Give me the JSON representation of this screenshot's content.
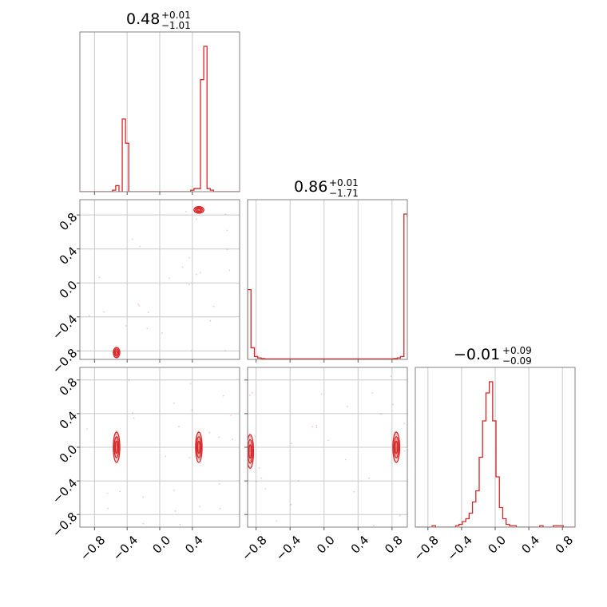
{
  "chart_data": {
    "type": "corner",
    "color": "#d62728",
    "parameters": [
      {
        "title": {
          "median": "0.48",
          "plus": "+0.01",
          "minus": "−1.01"
        },
        "range": [
          -0.98,
          0.98
        ]
      },
      {
        "title": {
          "median": "0.86",
          "plus": "+0.01",
          "minus": "−1.71"
        },
        "range": [
          -0.9,
          0.98
        ]
      },
      {
        "title": {
          "median": "−0.01",
          "plus": "+0.09",
          "minus": "−0.09"
        },
        "range": [
          -0.95,
          0.95
        ]
      }
    ],
    "ticks": {
      "p1": [
        "−0.8",
        "−0.4",
        "0.0",
        "0.4"
      ],
      "p2": [
        "−0.8",
        "−0.4",
        "0.0",
        "0.4",
        "0.8"
      ],
      "p3": [
        "−0.8",
        "−0.4",
        "0.0",
        "0.4",
        "0.8"
      ]
    },
    "grid": true,
    "histograms": [
      {
        "param": 1,
        "bin_width": 0.04,
        "edges_start": -0.98,
        "counts": [
          0,
          0,
          0,
          0,
          0,
          0,
          0,
          0,
          0,
          0,
          0.5,
          2,
          0,
          24,
          16,
          0,
          0,
          0,
          0,
          0,
          0,
          0,
          0,
          0,
          0,
          0,
          0,
          0,
          0,
          0,
          0,
          0,
          0,
          0,
          0.5,
          1,
          1,
          37,
          48,
          1,
          0.5,
          0,
          0,
          0,
          0,
          0,
          0,
          0,
          0
        ]
      },
      {
        "param": 2,
        "bin_width": 0.04,
        "edges_start": -0.9,
        "counts": [
          24,
          4,
          1,
          0.5,
          0.3,
          0.2,
          0.2,
          0.2,
          0.2,
          0.2,
          0.2,
          0.2,
          0.2,
          0.2,
          0.2,
          0.2,
          0.2,
          0.2,
          0.2,
          0.2,
          0.2,
          0.2,
          0.2,
          0.2,
          0.2,
          0.2,
          0.2,
          0.2,
          0.2,
          0.2,
          0.2,
          0.2,
          0.2,
          0.2,
          0.2,
          0.2,
          0.2,
          0.2,
          0.2,
          0.2,
          0.2,
          0.2,
          0.2,
          0.3,
          0.5,
          1,
          50,
          49,
          3
        ]
      },
      {
        "param": 3,
        "bin_width": 0.04,
        "edges_start": -0.95,
        "counts": [
          0,
          0,
          0,
          0,
          0,
          0.5,
          0,
          0,
          0,
          0,
          0,
          0,
          0.5,
          1,
          2,
          3,
          5,
          9,
          13,
          25,
          38,
          48,
          52,
          38,
          18,
          7,
          3,
          1,
          0.5,
          0.5,
          0,
          0,
          0,
          0,
          0,
          0,
          0,
          0.5,
          0,
          0,
          0,
          0.5,
          0.5,
          0.5,
          0,
          0,
          0,
          0
        ]
      }
    ],
    "density_2d": [
      {
        "x_param": 1,
        "y_param": 2,
        "clusters": [
          {
            "x": 0.48,
            "y": 0.86,
            "sx": 0.03,
            "sy": 0.02
          },
          {
            "x": -0.53,
            "y": -0.82,
            "sx": 0.02,
            "sy": 0.03
          }
        ]
      },
      {
        "x_param": 1,
        "y_param": 3,
        "clusters": [
          {
            "x": -0.53,
            "y": 0.0,
            "sx": 0.02,
            "sy": 0.09
          },
          {
            "x": 0.48,
            "y": 0.0,
            "sx": 0.02,
            "sy": 0.09
          }
        ]
      },
      {
        "x_param": 2,
        "y_param": 3,
        "clusters": [
          {
            "x": -0.87,
            "y": -0.05,
            "sx": 0.02,
            "sy": 0.1
          },
          {
            "x": 0.85,
            "y": 0.0,
            "sx": 0.02,
            "sy": 0.09
          }
        ]
      }
    ]
  }
}
